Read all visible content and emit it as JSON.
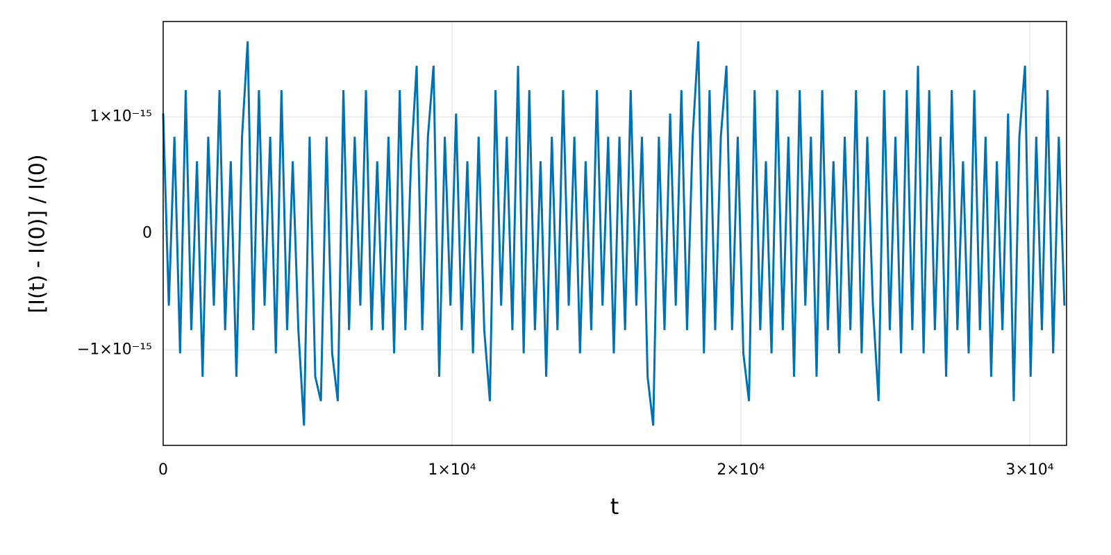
{
  "chart_data": {
    "type": "line",
    "x_label": "t",
    "y_label": "[I(t) - I(0)] / I(0)",
    "color": "#0072b2",
    "grid": true,
    "xlim": [
      0,
      31274
    ],
    "ylim": [
      -1.82e-15,
      1.82e-15
    ],
    "xticks": [
      0,
      {
        "value": 10000,
        "label": "1×10⁴"
      },
      {
        "value": 20000,
        "label": "2×10⁴"
      },
      {
        "value": 30000,
        "label": "3×10⁴"
      }
    ],
    "yticks": [
      {
        "value": -1e-15,
        "label": "−1×10⁻¹⁵"
      },
      0,
      {
        "value": 1e-15,
        "label": "1×10⁻¹⁵"
      }
    ],
    "x": [
      0,
      195,
      390,
      585,
      780,
      975,
      1170,
      1365,
      1560,
      1755,
      1950,
      2145,
      2340,
      2535,
      2730,
      2925,
      3120,
      3315,
      3510,
      3705,
      3900,
      4095,
      4290,
      4485,
      4680,
      4875,
      5070,
      5265,
      5460,
      5655,
      5850,
      6045,
      6240,
      6435,
      6630,
      6825,
      7020,
      7215,
      7410,
      7605,
      7800,
      7995,
      8190,
      8385,
      8580,
      8775,
      8970,
      9165,
      9360,
      9555,
      9750,
      9945,
      10140,
      10335,
      10530,
      10725,
      10920,
      11115,
      11310,
      11505,
      11700,
      11895,
      12090,
      12285,
      12480,
      12675,
      12870,
      13065,
      13260,
      13455,
      13650,
      13845,
      14040,
      14235,
      14430,
      14625,
      14820,
      15015,
      15210,
      15405,
      15600,
      15795,
      15990,
      16185,
      16380,
      16575,
      16770,
      16965,
      17160,
      17355,
      17550,
      17745,
      17940,
      18135,
      18330,
      18525,
      18720,
      18915,
      19110,
      19305,
      19500,
      19695,
      19890,
      20085,
      20280,
      20475,
      20670,
      20865,
      21060,
      21255,
      21450,
      21645,
      21840,
      22035,
      22230,
      22425,
      22620,
      22815,
      23010,
      23205,
      23400,
      23595,
      23790,
      23985,
      24180,
      24375,
      24570,
      24765,
      24960,
      25155,
      25350,
      25545,
      25740,
      25935,
      26130,
      26325,
      26520,
      26715,
      26910,
      27105,
      27300,
      27495,
      27690,
      27885,
      28080,
      28275,
      28470,
      28665,
      28860,
      29055,
      29250,
      29445,
      29640,
      29835,
      30030,
      30225,
      30420,
      30615,
      30810,
      31005,
      31200
    ],
    "values": [
      1.03e-15,
      -6.2e-16,
      8.3e-16,
      -1.03e-15,
      1.23e-15,
      -8.3e-16,
      6.2e-16,
      -1.23e-15,
      8.3e-16,
      -6.2e-16,
      1.23e-15,
      -8.3e-16,
      6.2e-16,
      -1.23e-15,
      8.3e-16,
      1.65e-15,
      -8.3e-16,
      1.23e-15,
      -6.2e-16,
      8.3e-16,
      -1.03e-15,
      1.23e-15,
      -8.3e-16,
      6.2e-16,
      -8.3e-16,
      -1.65e-15,
      8.3e-16,
      -1.23e-15,
      -1.44e-15,
      8.3e-16,
      -1.03e-15,
      -1.44e-15,
      1.23e-15,
      -8.3e-16,
      8.3e-16,
      -6.2e-16,
      1.23e-15,
      -8.3e-16,
      6.2e-16,
      -8.3e-16,
      8.3e-16,
      -1.03e-15,
      1.23e-15,
      -8.3e-16,
      6.2e-16,
      1.44e-15,
      -8.3e-16,
      8.3e-16,
      1.44e-15,
      -1.23e-15,
      8.3e-16,
      -6.2e-16,
      1.03e-15,
      -8.3e-16,
      6.2e-16,
      -1.03e-15,
      8.3e-16,
      -8.3e-16,
      -1.44e-15,
      1.23e-15,
      -6.2e-16,
      8.3e-16,
      -8.3e-16,
      1.44e-15,
      -1.03e-15,
      1.23e-15,
      -8.3e-16,
      6.2e-16,
      -1.23e-15,
      8.3e-16,
      -8.3e-16,
      1.23e-15,
      -6.2e-16,
      8.3e-16,
      -1.03e-15,
      6.2e-16,
      -8.3e-16,
      1.23e-15,
      -6.2e-16,
      8.3e-16,
      -1.03e-15,
      8.3e-16,
      -8.3e-16,
      1.23e-15,
      -6.2e-16,
      8.3e-16,
      -1.23e-15,
      -1.65e-15,
      8.3e-16,
      -8.3e-16,
      1.03e-15,
      -6.2e-16,
      1.23e-15,
      -8.3e-16,
      8.3e-16,
      1.65e-15,
      -1.03e-15,
      1.23e-15,
      -8.3e-16,
      8.3e-16,
      1.44e-15,
      -8.3e-16,
      8.3e-16,
      -1.03e-15,
      -1.44e-15,
      1.23e-15,
      -8.3e-16,
      6.2e-16,
      -1.03e-15,
      1.23e-15,
      -8.3e-16,
      8.3e-16,
      -1.23e-15,
      1.23e-15,
      -6.2e-16,
      8.3e-16,
      -1.23e-15,
      1.23e-15,
      -8.3e-16,
      6.2e-16,
      -1.03e-15,
      8.3e-16,
      -8.3e-16,
      1.23e-15,
      -1.03e-15,
      8.3e-16,
      -6.2e-16,
      -1.44e-15,
      1.23e-15,
      -8.3e-16,
      8.3e-16,
      -1.03e-15,
      1.23e-15,
      -8.3e-16,
      1.44e-15,
      -1.03e-15,
      1.23e-15,
      -8.3e-16,
      8.3e-16,
      -1.23e-15,
      1.23e-15,
      -8.3e-16,
      6.2e-16,
      -1.03e-15,
      1.23e-15,
      -8.3e-16,
      8.3e-16,
      -1.23e-15,
      6.2e-16,
      -8.3e-16,
      1.03e-15,
      -1.44e-15,
      8.3e-16,
      1.44e-15,
      -1.23e-15,
      8.3e-16,
      -8.3e-16,
      1.23e-15,
      -1.03e-15,
      8.3e-16,
      -6.2e-16
    ]
  }
}
